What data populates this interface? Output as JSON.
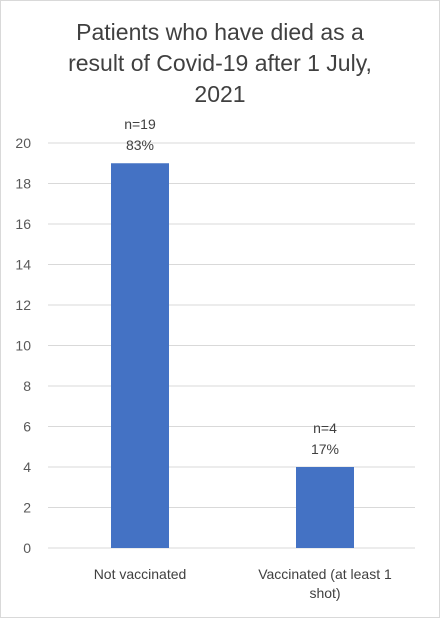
{
  "chart_data": {
    "type": "bar",
    "title_lines": [
      "Patients who have died as a",
      "result of Covid-19 after 1 July,",
      "2021"
    ],
    "categories": [
      "Not vaccinated",
      "Vaccinated (at least 1 shot)"
    ],
    "category_label_lines": [
      [
        "Not vaccinated"
      ],
      [
        "Vaccinated (at least 1",
        "shot)"
      ]
    ],
    "values": [
      19,
      4
    ],
    "data_labels": [
      [
        "n=19",
        "83%"
      ],
      [
        "n=4",
        "17%"
      ]
    ],
    "ylim": [
      0,
      20
    ],
    "yticks": [
      "0",
      "2",
      "4",
      "6",
      "8",
      "10",
      "12",
      "14",
      "16",
      "18",
      "20"
    ],
    "grid": true,
    "bar_color": "#4472c4",
    "grid_color": "#d9d9d9",
    "xlabel": "",
    "ylabel": ""
  }
}
